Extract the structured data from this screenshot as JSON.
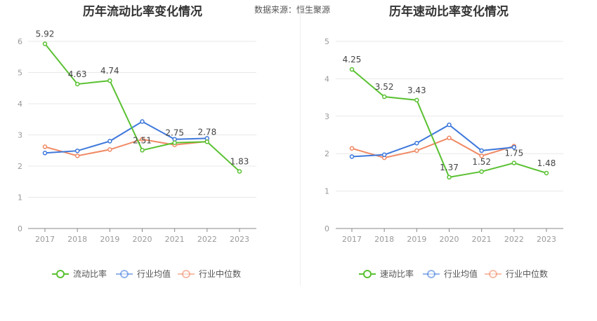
{
  "source": {
    "label": "数据来源：",
    "name": "恒生聚源"
  },
  "chart_data": [
    {
      "type": "line",
      "title": "历年流动比率变化情况",
      "categories": [
        "2017",
        "2018",
        "2019",
        "2020",
        "2021",
        "2022",
        "2023"
      ],
      "ylim": [
        0,
        6
      ],
      "yticks": [
        0,
        1,
        2,
        3,
        4,
        5,
        6
      ],
      "grid": true,
      "legend": "bottom",
      "series": [
        {
          "name": "流动比率",
          "color": "#5ac132",
          "labeled": true,
          "values": [
            5.92,
            4.63,
            4.74,
            2.51,
            2.75,
            2.78,
            1.83
          ]
        },
        {
          "name": "行业均值",
          "color": "#3e78db",
          "labeled": false,
          "values": [
            2.42,
            2.49,
            2.8,
            3.43,
            2.86,
            2.89,
            null
          ]
        },
        {
          "name": "行业中位数",
          "color": "#f08964",
          "labeled": false,
          "values": [
            2.62,
            2.33,
            2.53,
            2.86,
            2.68,
            2.79,
            null
          ]
        }
      ]
    },
    {
      "type": "line",
      "title": "历年速动比率变化情况",
      "categories": [
        "2017",
        "2018",
        "2019",
        "2020",
        "2021",
        "2022",
        "2023"
      ],
      "ylim": [
        0,
        5
      ],
      "yticks": [
        0,
        1,
        2,
        3,
        4,
        5
      ],
      "grid": true,
      "legend": "bottom",
      "series": [
        {
          "name": "速动比率",
          "color": "#5ac132",
          "labeled": true,
          "values": [
            4.25,
            3.52,
            3.43,
            1.37,
            1.52,
            1.75,
            1.48
          ]
        },
        {
          "name": "行业均值",
          "color": "#3e78db",
          "labeled": false,
          "values": [
            1.92,
            1.97,
            2.28,
            2.77,
            2.08,
            2.17,
            null
          ]
        },
        {
          "name": "行业中位数",
          "color": "#f08964",
          "labeled": false,
          "values": [
            2.14,
            1.89,
            2.08,
            2.42,
            1.94,
            2.2,
            null
          ]
        }
      ]
    }
  ]
}
